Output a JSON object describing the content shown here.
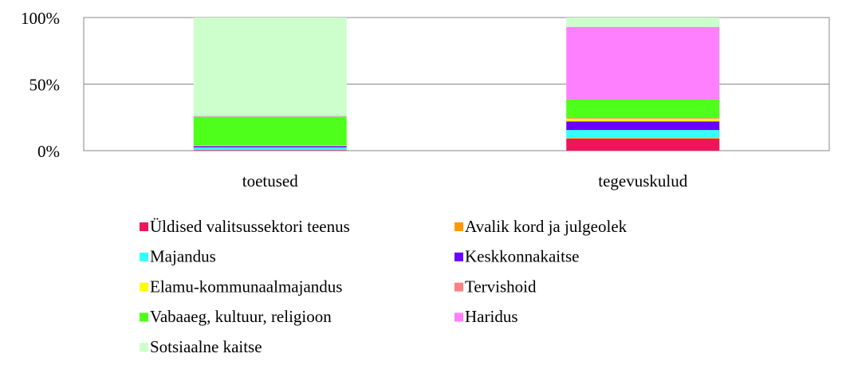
{
  "chart_data": {
    "type": "bar",
    "stacked": true,
    "categories": [
      "toetused",
      "tegevuskulud"
    ],
    "series": [
      {
        "name": "Üldised valitsussektori teenus",
        "color": "#f0145a",
        "values": [
          0.5,
          9
        ]
      },
      {
        "name": "Avalik kord ja julgeolek",
        "color": "#ff9900",
        "values": [
          0,
          0.5
        ]
      },
      {
        "name": "Majandus",
        "color": "#33ffff",
        "values": [
          2,
          6
        ]
      },
      {
        "name": "Keskkonnakaitse",
        "color": "#6a00ff",
        "values": [
          1,
          6.5
        ]
      },
      {
        "name": "Elamu-kommunaalmajandus",
        "color": "#ffff00",
        "values": [
          0.5,
          2
        ]
      },
      {
        "name": "Tervishoid",
        "color": "#ff8080",
        "values": [
          0,
          0.5
        ]
      },
      {
        "name": "Vabaaeg, kultuur, religioon",
        "color": "#4dff1a",
        "values": [
          21.5,
          14
        ]
      },
      {
        "name": "Haridus",
        "color": "#ff80ff",
        "values": [
          0.5,
          54.5
        ]
      },
      {
        "name": "Sotsiaalne kaitse",
        "color": "#ccffcc",
        "values": [
          74,
          7
        ]
      }
    ],
    "ylim": [
      0,
      100
    ],
    "yticks": [
      {
        "value": 0,
        "label": "0%"
      },
      {
        "value": 50,
        "label": "50%"
      },
      {
        "value": 100,
        "label": "100%"
      }
    ],
    "grid": true
  }
}
